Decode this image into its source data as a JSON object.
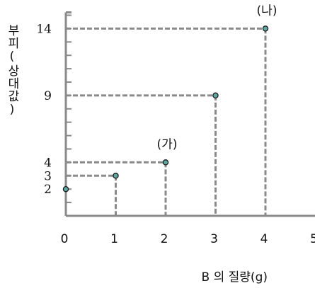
{
  "chart_data": {
    "type": "scatter",
    "xlabel": "B 의 질량(g)",
    "ylabel": "부피(상대값)",
    "xlim": [
      0,
      5
    ],
    "ylim": [
      0,
      15
    ],
    "x_ticks": [
      0,
      1,
      2,
      3,
      4,
      5
    ],
    "y_ticks": [
      2,
      3,
      4,
      9,
      14
    ],
    "grid": false,
    "points": [
      {
        "x": 0,
        "y": 2,
        "label": ""
      },
      {
        "x": 1,
        "y": 3,
        "label": ""
      },
      {
        "x": 2,
        "y": 4,
        "label": "(가)"
      },
      {
        "x": 3,
        "y": 9,
        "label": ""
      },
      {
        "x": 4,
        "y": 14,
        "label": "(나)"
      }
    ],
    "colors": {
      "point_fill": "#5fa7a1",
      "point_stroke": "#1a1a1a",
      "guide": "#8a8a8a",
      "axis": "#8a8a8a"
    }
  }
}
